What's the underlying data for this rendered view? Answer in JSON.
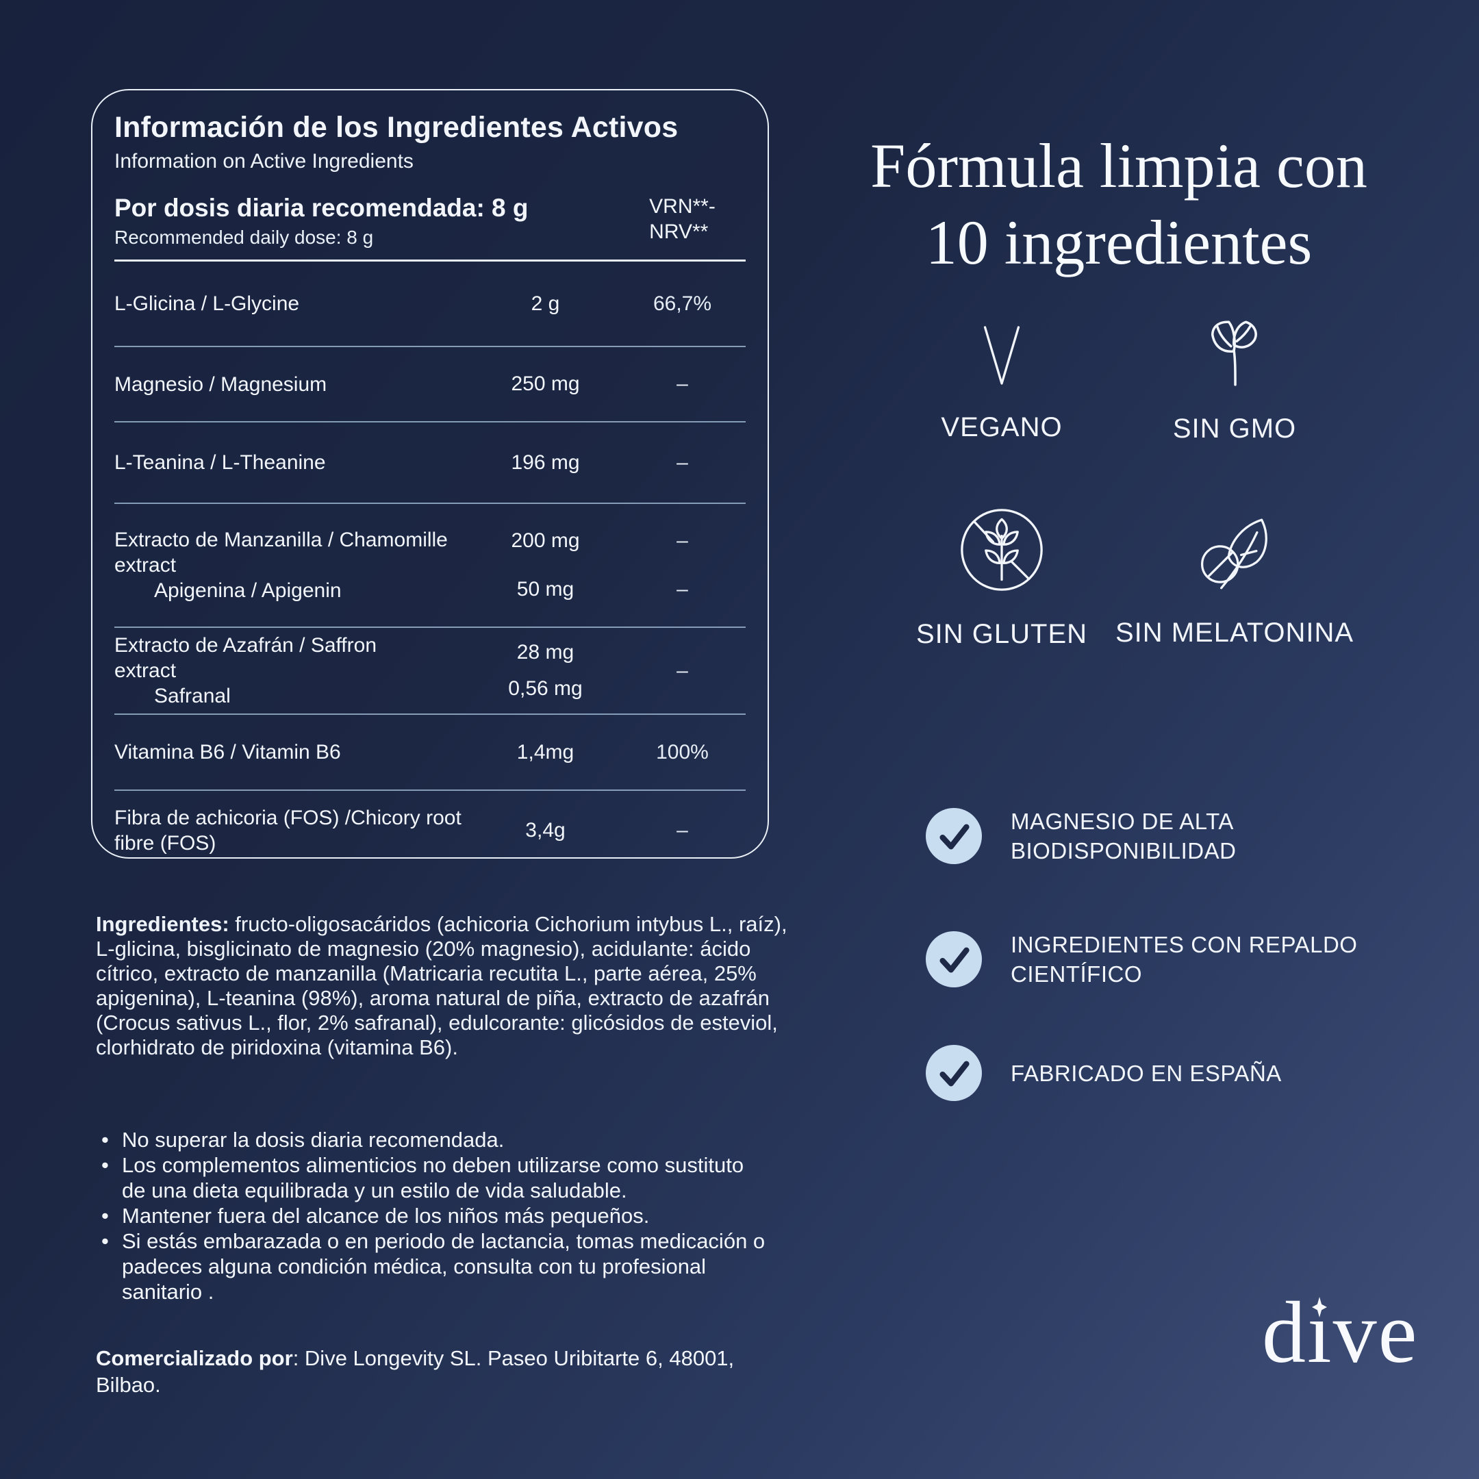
{
  "colors": {
    "background_top": "#18223d",
    "background_bottom": "#41517a",
    "card_border": "#e9eff6",
    "row_line": "#a9c4de",
    "check_circle_fill": "#c9ddf1",
    "check_mark": "#1d2946",
    "text": "#f2f6fa"
  },
  "card": {
    "title": "Información de los Ingredientes Activos",
    "subtitle": "Information on Active Ingredients",
    "dose": {
      "primary": "Por dosis diaria recomendada: 8 g",
      "secondary": "Recommended daily dose: 8 g",
      "nrv_lines": [
        "VRN**-",
        "NRV**"
      ]
    },
    "rows": [
      {
        "labels": [
          "L-Glicina / L-Glycine"
        ],
        "amounts": [
          "2 g"
        ],
        "nrvs": [
          "66,7%"
        ]
      },
      {
        "labels": [
          "Magnesio / Magnesium"
        ],
        "amounts": [
          "250 mg"
        ],
        "nrvs": [
          "–"
        ]
      },
      {
        "labels": [
          "L-Teanina / L-Theanine"
        ],
        "amounts": [
          "196 mg"
        ],
        "nrvs": [
          "–"
        ]
      },
      {
        "labels": [
          "Extracto de Manzanilla  / Chamomille",
          "extract"
        ],
        "sub": "Apigenina / Apigenin",
        "amounts": [
          "200 mg",
          "50 mg"
        ],
        "nrvs": [
          "–",
          "–"
        ]
      },
      {
        "labels": [
          "Extracto de Azafrán / Saffron",
          "extract"
        ],
        "sub": "Safranal",
        "amounts": [
          "28 mg",
          "0,56 mg"
        ],
        "nrvs": [
          "–"
        ]
      },
      {
        "labels": [
          "Vitamina B6 / Vitamin B6"
        ],
        "amounts": [
          "1,4mg"
        ],
        "nrvs": [
          "100%"
        ]
      },
      {
        "labels": [
          "Fibra de achicoria (FOS) /Chicory root",
          "fibre (FOS)"
        ],
        "amounts": [
          "3,4g"
        ],
        "nrvs": [
          "–"
        ]
      }
    ]
  },
  "ingredients": {
    "lead": "Ingredientes:",
    "body": " fructo-oligosacáridos (achicoria Cichorium intybus L., raíz), L-glicina, bisglicinato de magnesio (20% magnesio), acidulante: ácido cítrico, extracto de manzanilla (Matricaria recutita L., parte aérea, 25% apigenina), L-teanina (98%), aroma natural de piña, extracto de azafrán (Crocus sativus L., flor, 2% safranal), edulcorante: glicósidos de esteviol, clorhidrato de piridoxina (vitamina B6)."
  },
  "warnings": [
    "No superar la dosis diaria recomendada.",
    "Los complementos alimenticios no deben utilizarse como sustituto de una dieta equilibrada y un estilo de vida saludable.",
    "Mantener fuera del alcance de los niños más pequeños.",
    "Si estás embarazada o en periodo de lactancia, tomas medicación o padeces alguna condición médica, consulta con tu profesional sanitario ."
  ],
  "distributor": {
    "lead": "Comercializado por",
    "body": ": Dive Longevity SL. Paseo Uribitarte 6, 48001, Bilbao."
  },
  "right": {
    "title": "Fórmula limpia con 10 ingredientes",
    "badges": [
      {
        "icon": "vegan-v-icon",
        "label": "VEGANO"
      },
      {
        "icon": "sprout-icon",
        "label": "SIN GMO"
      },
      {
        "icon": "no-gluten-icon",
        "label": "SIN GLUTEN"
      },
      {
        "icon": "no-melatonin-icon",
        "label": "SIN MELATONINA"
      }
    ],
    "claims": [
      "MAGNESIO DE ALTA BIODISPONIBILIDAD",
      "INGREDIENTES CON REPALDO CIENTÍFICO",
      "FABRICADO EN ESPAÑA"
    ],
    "logo": "dive"
  }
}
